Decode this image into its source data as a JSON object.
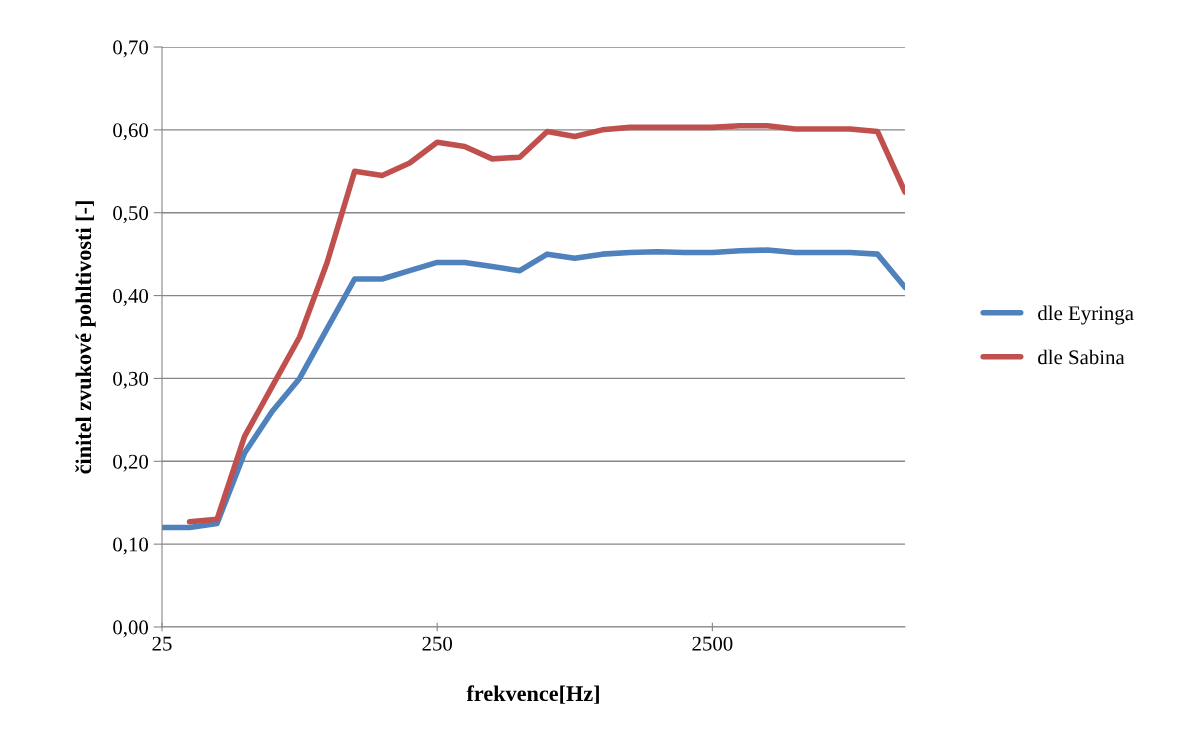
{
  "chart_data": {
    "type": "line",
    "xlabel": "frekvence[Hz]",
    "ylabel": "činitel zvukové pohltivosti [-]",
    "categories": [
      "25",
      null,
      null,
      null,
      null,
      null,
      null,
      null,
      null,
      null,
      "250",
      null,
      null,
      null,
      null,
      null,
      null,
      null,
      null,
      null,
      "2500",
      null,
      null,
      null,
      null,
      null,
      null,
      null
    ],
    "series": [
      {
        "name": "dle Eyringa",
        "color": "#4f81bd",
        "values": [
          0.12,
          0.12,
          0.125,
          0.21,
          0.26,
          0.3,
          0.36,
          0.42,
          0.42,
          0.43,
          0.44,
          0.44,
          0.435,
          0.43,
          0.45,
          0.445,
          0.45,
          0.452,
          0.453,
          0.452,
          0.452,
          0.454,
          0.455,
          0.452,
          0.452,
          0.452,
          0.45,
          0.41
        ]
      },
      {
        "name": "dle Sabina",
        "color": "#c0504d",
        "values": [
          null,
          0.127,
          0.13,
          0.23,
          0.29,
          0.35,
          0.44,
          0.55,
          0.545,
          0.56,
          0.585,
          0.58,
          0.565,
          0.567,
          0.598,
          0.592,
          0.6,
          0.603,
          0.603,
          0.603,
          0.603,
          0.605,
          0.605,
          0.601,
          0.601,
          0.601,
          0.598,
          0.525
        ]
      }
    ],
    "ylim": [
      0,
      0.7
    ],
    "yticks": [
      {
        "value": 0,
        "label": "0,00"
      },
      {
        "value": 0.1,
        "label": "0,10"
      },
      {
        "value": 0.2,
        "label": "0,20"
      },
      {
        "value": 0.3,
        "label": "0,30"
      },
      {
        "value": 0.4,
        "label": "0,40"
      },
      {
        "value": 0.5,
        "label": "0,50"
      },
      {
        "value": 0.6,
        "label": "0,60"
      },
      {
        "value": 0.7,
        "label": "0,70"
      }
    ],
    "grid": "y",
    "legend": "right",
    "line_style": "solid",
    "marker": "none"
  }
}
